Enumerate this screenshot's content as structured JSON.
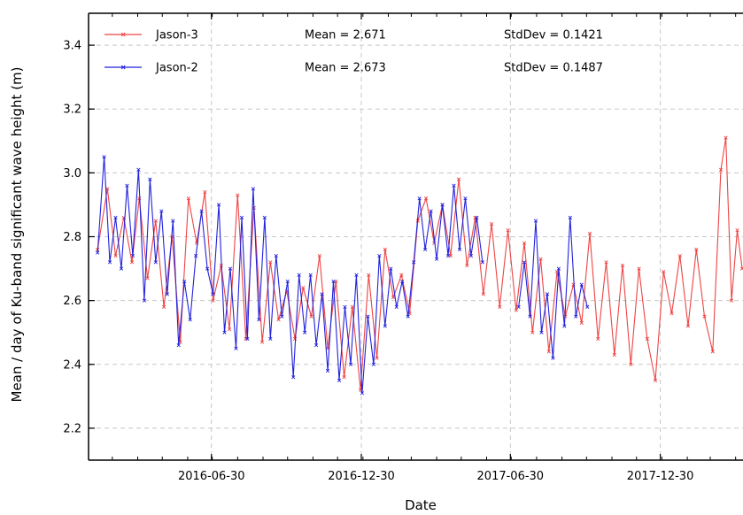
{
  "chart_data": {
    "type": "line",
    "xlabel": "Date",
    "ylabel": "Mean / day of Ku-band significant wave height (m)",
    "xlim": [
      "2016-02-01",
      "2018-04-10"
    ],
    "ylim": [
      2.1,
      3.5
    ],
    "x_ticks": [
      "2016-06-30",
      "2016-12-30",
      "2017-06-30",
      "2017-12-30"
    ],
    "y_ticks": [
      "2.2",
      "2.4",
      "2.6",
      "2.8",
      "3.0",
      "3.2",
      "3.4"
    ],
    "grid": true,
    "legend_position": "top-left",
    "series": [
      {
        "name": "Jason-3",
        "color": "#ee4444",
        "mean_label": "Mean = 2.671",
        "std_label": "StdDev = 0.1421",
        "points": [
          [
            "2016-02-12",
            2.76
          ],
          [
            "2016-02-24",
            2.95
          ],
          [
            "2016-03-05",
            2.74
          ],
          [
            "2016-03-15",
            2.86
          ],
          [
            "2016-03-25",
            2.72
          ],
          [
            "2016-04-03",
            2.92
          ],
          [
            "2016-04-13",
            2.67
          ],
          [
            "2016-04-23",
            2.85
          ],
          [
            "2016-05-03",
            2.58
          ],
          [
            "2016-05-13",
            2.8
          ],
          [
            "2016-05-23",
            2.47
          ],
          [
            "2016-06-02",
            2.92
          ],
          [
            "2016-06-12",
            2.78
          ],
          [
            "2016-06-22",
            2.94
          ],
          [
            "2016-07-02",
            2.6
          ],
          [
            "2016-07-12",
            2.71
          ],
          [
            "2016-07-22",
            2.51
          ],
          [
            "2016-08-01",
            2.93
          ],
          [
            "2016-08-11",
            2.48
          ],
          [
            "2016-08-21",
            2.89
          ],
          [
            "2016-08-31",
            2.47
          ],
          [
            "2016-09-10",
            2.72
          ],
          [
            "2016-09-20",
            2.54
          ],
          [
            "2016-09-30",
            2.63
          ],
          [
            "2016-10-10",
            2.48
          ],
          [
            "2016-10-20",
            2.64
          ],
          [
            "2016-10-30",
            2.55
          ],
          [
            "2016-11-09",
            2.74
          ],
          [
            "2016-11-19",
            2.45
          ],
          [
            "2016-11-29",
            2.66
          ],
          [
            "2016-12-09",
            2.36
          ],
          [
            "2016-12-19",
            2.58
          ],
          [
            "2016-12-29",
            2.32
          ],
          [
            "2017-01-08",
            2.68
          ],
          [
            "2017-01-18",
            2.42
          ],
          [
            "2017-01-28",
            2.76
          ],
          [
            "2017-02-07",
            2.61
          ],
          [
            "2017-02-17",
            2.68
          ],
          [
            "2017-02-27",
            2.56
          ],
          [
            "2017-03-09",
            2.85
          ],
          [
            "2017-03-19",
            2.92
          ],
          [
            "2017-03-29",
            2.78
          ],
          [
            "2017-04-08",
            2.9
          ],
          [
            "2017-04-18",
            2.74
          ],
          [
            "2017-04-28",
            2.98
          ],
          [
            "2017-05-08",
            2.71
          ],
          [
            "2017-05-18",
            2.86
          ],
          [
            "2017-05-28",
            2.62
          ],
          [
            "2017-06-07",
            2.84
          ],
          [
            "2017-06-17",
            2.58
          ],
          [
            "2017-06-27",
            2.82
          ],
          [
            "2017-07-07",
            2.57
          ],
          [
            "2017-07-17",
            2.78
          ],
          [
            "2017-07-27",
            2.5
          ],
          [
            "2017-08-06",
            2.73
          ],
          [
            "2017-08-16",
            2.44
          ],
          [
            "2017-08-26",
            2.69
          ],
          [
            "2017-09-05",
            2.55
          ],
          [
            "2017-09-15",
            2.65
          ],
          [
            "2017-09-25",
            2.53
          ],
          [
            "2017-10-05",
            2.81
          ],
          [
            "2017-10-15",
            2.48
          ],
          [
            "2017-10-25",
            2.72
          ],
          [
            "2017-11-04",
            2.43
          ],
          [
            "2017-11-14",
            2.71
          ],
          [
            "2017-11-24",
            2.4
          ],
          [
            "2017-12-04",
            2.7
          ],
          [
            "2017-12-14",
            2.48
          ],
          [
            "2017-12-24",
            2.35
          ],
          [
            "2018-01-03",
            2.69
          ],
          [
            "2018-01-13",
            2.56
          ],
          [
            "2018-01-23",
            2.74
          ],
          [
            "2018-02-02",
            2.52
          ],
          [
            "2018-02-12",
            2.76
          ],
          [
            "2018-02-22",
            2.55
          ],
          [
            "2018-03-04",
            2.44
          ],
          [
            "2018-03-14",
            3.01
          ],
          [
            "2018-03-20",
            3.11
          ],
          [
            "2018-03-27",
            2.6
          ],
          [
            "2018-04-03",
            2.82
          ],
          [
            "2018-04-09",
            2.7
          ]
        ]
      },
      {
        "name": "Jason-2",
        "color": "#2222dd",
        "mean_label": "Mean = 2.673",
        "std_label": "StdDev = 0.1487",
        "points": [
          [
            "2016-02-12",
            2.75
          ],
          [
            "2016-02-20",
            3.05
          ],
          [
            "2016-02-27",
            2.72
          ],
          [
            "2016-03-05",
            2.86
          ],
          [
            "2016-03-12",
            2.7
          ],
          [
            "2016-03-19",
            2.96
          ],
          [
            "2016-03-26",
            2.74
          ],
          [
            "2016-04-02",
            3.01
          ],
          [
            "2016-04-09",
            2.6
          ],
          [
            "2016-04-16",
            2.98
          ],
          [
            "2016-04-23",
            2.72
          ],
          [
            "2016-04-30",
            2.88
          ],
          [
            "2016-05-07",
            2.62
          ],
          [
            "2016-05-14",
            2.85
          ],
          [
            "2016-05-21",
            2.46
          ],
          [
            "2016-05-28",
            2.66
          ],
          [
            "2016-06-04",
            2.54
          ],
          [
            "2016-06-11",
            2.74
          ],
          [
            "2016-06-18",
            2.88
          ],
          [
            "2016-06-25",
            2.7
          ],
          [
            "2016-07-02",
            2.62
          ],
          [
            "2016-07-09",
            2.9
          ],
          [
            "2016-07-16",
            2.5
          ],
          [
            "2016-07-23",
            2.7
          ],
          [
            "2016-07-30",
            2.45
          ],
          [
            "2016-08-06",
            2.86
          ],
          [
            "2016-08-13",
            2.48
          ],
          [
            "2016-08-20",
            2.95
          ],
          [
            "2016-08-27",
            2.54
          ],
          [
            "2016-09-03",
            2.86
          ],
          [
            "2016-09-10",
            2.48
          ],
          [
            "2016-09-17",
            2.74
          ],
          [
            "2016-09-24",
            2.55
          ],
          [
            "2016-10-01",
            2.66
          ],
          [
            "2016-10-08",
            2.36
          ],
          [
            "2016-10-15",
            2.68
          ],
          [
            "2016-10-22",
            2.5
          ],
          [
            "2016-10-29",
            2.68
          ],
          [
            "2016-11-05",
            2.46
          ],
          [
            "2016-11-12",
            2.62
          ],
          [
            "2016-11-19",
            2.38
          ],
          [
            "2016-11-26",
            2.66
          ],
          [
            "2016-12-03",
            2.35
          ],
          [
            "2016-12-10",
            2.58
          ],
          [
            "2016-12-17",
            2.4
          ],
          [
            "2016-12-24",
            2.68
          ],
          [
            "2016-12-31",
            2.31
          ],
          [
            "2017-01-07",
            2.55
          ],
          [
            "2017-01-14",
            2.4
          ],
          [
            "2017-01-21",
            2.74
          ],
          [
            "2017-01-28",
            2.52
          ],
          [
            "2017-02-04",
            2.7
          ],
          [
            "2017-02-11",
            2.58
          ],
          [
            "2017-02-18",
            2.66
          ],
          [
            "2017-02-25",
            2.55
          ],
          [
            "2017-03-04",
            2.72
          ],
          [
            "2017-03-11",
            2.92
          ],
          [
            "2017-03-18",
            2.76
          ],
          [
            "2017-03-25",
            2.88
          ],
          [
            "2017-04-01",
            2.73
          ],
          [
            "2017-04-08",
            2.9
          ],
          [
            "2017-04-15",
            2.74
          ],
          [
            "2017-04-22",
            2.96
          ],
          [
            "2017-04-29",
            2.76
          ],
          [
            "2017-05-06",
            2.92
          ],
          [
            "2017-05-13",
            2.74
          ],
          [
            "2017-05-20",
            2.86
          ],
          [
            "2017-05-27",
            2.72
          ],
          [
            "2017-07-10",
            2.58
          ],
          [
            "2017-07-17",
            2.72
          ],
          [
            "2017-07-24",
            2.55
          ],
          [
            "2017-07-31",
            2.85
          ],
          [
            "2017-08-07",
            2.5
          ],
          [
            "2017-08-14",
            2.62
          ],
          [
            "2017-08-21",
            2.42
          ],
          [
            "2017-08-28",
            2.7
          ],
          [
            "2017-09-04",
            2.52
          ],
          [
            "2017-09-11",
            2.86
          ],
          [
            "2017-09-18",
            2.55
          ],
          [
            "2017-09-25",
            2.65
          ],
          [
            "2017-10-02",
            2.58
          ]
        ]
      }
    ]
  }
}
